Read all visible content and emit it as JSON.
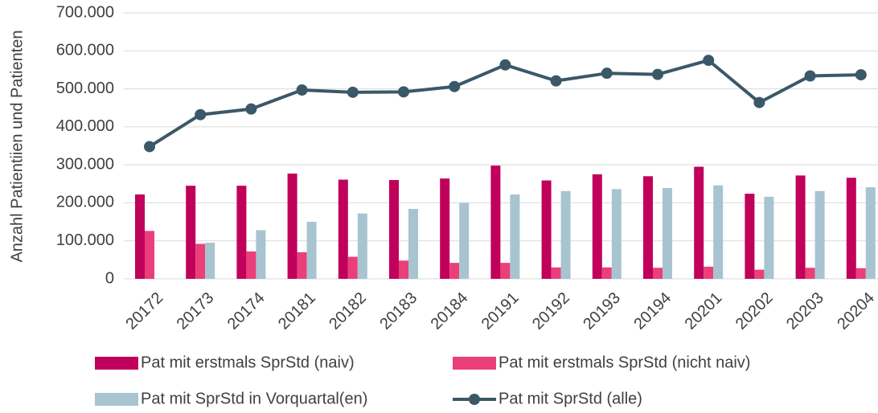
{
  "chart_data": {
    "type": "bar_line",
    "ylabel": "Anzahl Patientiien und Patienten",
    "categories": [
      "20172",
      "20173",
      "20174",
      "20181",
      "20182",
      "20183",
      "20184",
      "20191",
      "20192",
      "20193",
      "20194",
      "20201",
      "20202",
      "20203",
      "20204"
    ],
    "series": [
      {
        "name": "Pat mit erstmals SprStd (naiv)",
        "type": "bar",
        "color": "#c0005a",
        "values": [
          222000,
          245000,
          245000,
          277000,
          261000,
          260000,
          264000,
          298000,
          259000,
          275000,
          270000,
          295000,
          224000,
          272000,
          266000
        ]
      },
      {
        "name": "Pat mit erstmals SprStd (nicht naiv)",
        "type": "bar",
        "color": "#ea3f7b",
        "values": [
          126000,
          92000,
          72000,
          70000,
          58000,
          48000,
          42000,
          42000,
          30000,
          30000,
          29000,
          32000,
          24000,
          29000,
          28000
        ]
      },
      {
        "name": "Pat mit SprStd in Vorquartal(en)",
        "type": "bar",
        "color": "#a7c4d0",
        "values": [
          null,
          95000,
          128000,
          150000,
          172000,
          184000,
          200000,
          222000,
          231000,
          236000,
          239000,
          246000,
          216000,
          231000,
          241000
        ]
      },
      {
        "name": "Pat mit SprStd (alle)",
        "type": "line",
        "color": "#3b5868",
        "values": [
          348000,
          432000,
          447000,
          497000,
          491000,
          492000,
          506000,
          563000,
          521000,
          541000,
          538000,
          575000,
          464000,
          534000,
          537000
        ]
      }
    ],
    "ylim": [
      0,
      700000
    ],
    "yticks": [
      0,
      {
        "value": 100000,
        "label": "100.000"
      },
      {
        "value": 200000,
        "label": "200.000"
      },
      {
        "value": 300000,
        "label": "300.000"
      },
      {
        "value": 400000,
        "label": "400.000"
      },
      {
        "value": 500000,
        "label": "500.000"
      },
      {
        "value": 600000,
        "label": "600.000"
      },
      {
        "value": 700000,
        "label": "700.000"
      }
    ],
    "grid": true
  }
}
